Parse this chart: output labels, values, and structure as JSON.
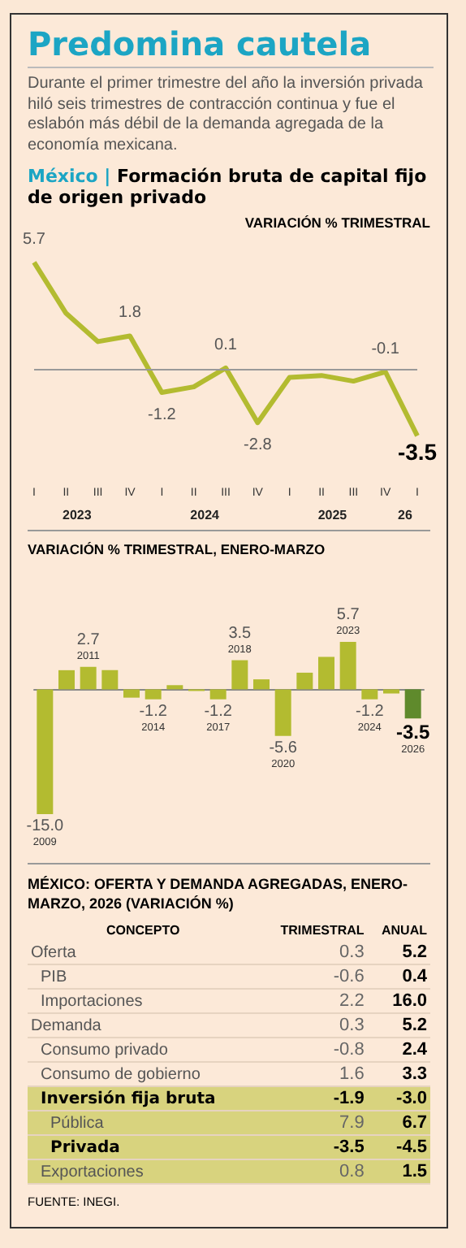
{
  "chart_data": [
    {
      "type": "line",
      "title": "Predomina cautela",
      "subtitle": "Durante el primer trimestre del año la inversión privada hiló seis trimestres de contracción continua y fue el eslabón más débil de la demanda agregada de la economía mexicana.",
      "ylabel": "VARIACIÓN % TRIMESTRAL",
      "annotations": [
        "México | Formación bruta de capital fijo de origen privado",
        "2023",
        "2024",
        "2025",
        "26"
      ],
      "categories": [
        "I",
        "II",
        "III",
        "IV",
        "I",
        "II",
        "III",
        "IV",
        "I",
        "II",
        "III",
        "IV",
        "I"
      ],
      "series": [
        {
          "color": "#b3bb30",
          "values": [
            5.7,
            3.0,
            1.5,
            1.8,
            -1.2,
            -0.9,
            0.1,
            -2.8,
            -0.4,
            -0.3,
            -0.6,
            -0.1,
            -3.5
          ],
          "value_labels": [
            "5.7",
            null,
            null,
            "1.8",
            "-1.2",
            null,
            "0.1",
            "-2.8",
            null,
            null,
            null,
            "-0.1",
            "-3.5"
          ]
        }
      ],
      "ref_lines": [
        {
          "axis": "y",
          "value": 0,
          "label": null,
          "color": "#999999"
        }
      ]
    },
    {
      "type": "bar",
      "title": "VARIACIÓN % TRIMESTRAL, ENERO-MARZO",
      "categories": [
        "2009",
        null,
        "2011",
        null,
        null,
        "2014",
        null,
        null,
        "2017",
        "2018",
        null,
        "2020",
        null,
        null,
        "2023",
        "2024",
        null,
        "2026"
      ],
      "values": [
        -15.0,
        2.3,
        2.7,
        2.3,
        -1.0,
        -1.2,
        0.5,
        -0.2,
        -1.2,
        3.5,
        1.2,
        -5.6,
        2.0,
        3.9,
        5.7,
        -1.2,
        -0.5,
        -3.5
      ],
      "value_labels": [
        "-15.0",
        null,
        "2.7",
        null,
        null,
        "-1.2",
        null,
        null,
        "-1.2",
        "3.5",
        null,
        "-5.6",
        null,
        null,
        "5.7",
        "-1.2",
        null,
        "-3.5"
      ],
      "colors": [
        "#b3bb30",
        "#b3bb30",
        "#b3bb30",
        "#b3bb30",
        "#b3bb30",
        "#b3bb30",
        "#b3bb30",
        "#b3bb30",
        "#b3bb30",
        "#b3bb30",
        "#b3bb30",
        "#b3bb30",
        "#b3bb30",
        "#b3bb30",
        "#b3bb30",
        "#b3bb30",
        "#b3bb30",
        "#5f8a2c"
      ]
    },
    {
      "type": "other",
      "title": "MÉXICO: OFERTA Y DEMANDA AGREGADAS, ENERO-MARZO, 2026 (VARIACIÓN %)",
      "xlabel": "CONCEPTO",
      "categories": [
        "Oferta",
        "PIB",
        "Importaciones",
        "Demanda",
        "Consumo privado",
        "Consumo de gobierno",
        "Inversión fija bruta",
        "Pública",
        "Privada",
        "Exportaciones"
      ],
      "series": [
        {
          "name": "TRIMESTRAL",
          "values": [
            0.3,
            -0.6,
            2.2,
            0.3,
            -0.8,
            1.6,
            -1.9,
            7.9,
            -3.5,
            0.8
          ],
          "value_labels": [
            "0.3",
            "-0.6",
            "2.2",
            "0.3",
            "-0.8",
            "1.6",
            "-1.9",
            "7.9",
            "-3.5",
            "0.8"
          ]
        },
        {
          "name": "ANUAL",
          "values": [
            5.2,
            0.4,
            16.0,
            5.2,
            2.4,
            3.3,
            -3.0,
            6.7,
            -4.5,
            1.5
          ],
          "value_labels": [
            "5.2",
            "0.4",
            "16.0",
            "5.2",
            "2.4",
            "3.3",
            "-3.0",
            "6.7",
            "-4.5",
            "1.5"
          ]
        }
      ],
      "annotations": [
        "FUENTE:  INEGI."
      ]
    }
  ]
}
